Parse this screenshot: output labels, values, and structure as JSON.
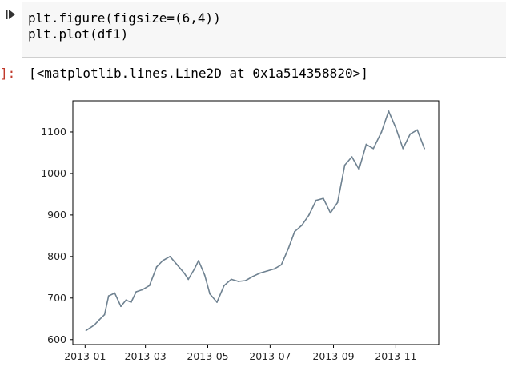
{
  "cell": {
    "code_lines": [
      "plt.figure(figsize=(6,4))",
      "plt.plot(df1)"
    ],
    "output_prompt": "]:",
    "output_text": "[<matplotlib.lines.Line2D at 0x1a514358820>]"
  },
  "icons": {
    "run": "run-cell-icon"
  },
  "colors": {
    "line": "#6f8291",
    "code_bg": "#f7f7f7",
    "prompt": "#c0392b"
  },
  "chart_data": {
    "type": "line",
    "title": "",
    "xlabel": "",
    "ylabel": "",
    "xticks": [
      "2013-01",
      "2013-03",
      "2013-05",
      "2013-07",
      "2013-09",
      "2013-11"
    ],
    "yticks": [
      "600",
      "700",
      "800",
      "900",
      "1000",
      "1100"
    ],
    "xlim": [
      "2012-12-20",
      "2013-12-13"
    ],
    "ylim": [
      588,
      1175
    ],
    "grid": false,
    "legend": "none",
    "series": [
      {
        "x": [
          "2013-01-02",
          "2013-01-10",
          "2013-01-15",
          "2013-01-20",
          "2013-01-24",
          "2013-01-30",
          "2013-02-05",
          "2013-02-10",
          "2013-02-15",
          "2013-02-20",
          "2013-02-26",
          "2013-03-05",
          "2013-03-12",
          "2013-03-18",
          "2013-03-25",
          "2013-04-01",
          "2013-04-08",
          "2013-04-12",
          "2013-04-18",
          "2013-04-22",
          "2013-04-28",
          "2013-05-03",
          "2013-05-10",
          "2013-05-17",
          "2013-05-24",
          "2013-05-31",
          "2013-06-07",
          "2013-06-14",
          "2013-06-21",
          "2013-06-28",
          "2013-07-05",
          "2013-07-12",
          "2013-07-19",
          "2013-07-25",
          "2013-08-01",
          "2013-08-08",
          "2013-08-15",
          "2013-08-22",
          "2013-08-29",
          "2013-09-05",
          "2013-09-12",
          "2013-09-19",
          "2013-09-26",
          "2013-10-03",
          "2013-10-10",
          "2013-10-18",
          "2013-10-25",
          "2013-11-01",
          "2013-11-08",
          "2013-11-15",
          "2013-11-22",
          "2013-11-29"
        ],
        "y": [
          622,
          635,
          648,
          660,
          705,
          712,
          680,
          695,
          690,
          715,
          720,
          730,
          775,
          790,
          800,
          780,
          760,
          745,
          770,
          790,
          755,
          710,
          690,
          730,
          745,
          740,
          742,
          752,
          760,
          765,
          770,
          780,
          820,
          860,
          875,
          900,
          935,
          940,
          905,
          930,
          1020,
          1040,
          1010,
          1070,
          1060,
          1100,
          1150,
          1110,
          1060,
          1095,
          1105,
          1060
        ]
      }
    ]
  }
}
